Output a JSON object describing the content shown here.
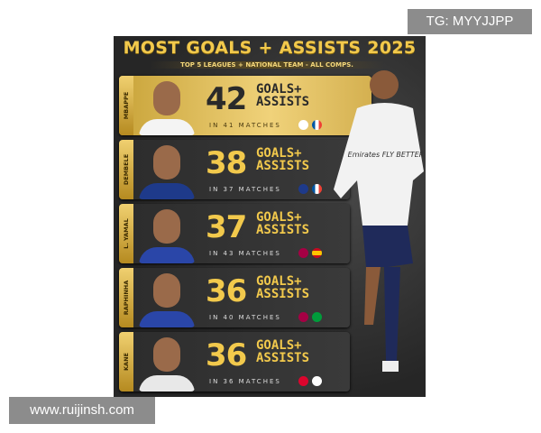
{
  "poster": {
    "title": "MOST GOALS + ASSISTS 2025",
    "subtitle": "TOP 5 LEAGUES + NATIONAL TEAM - ALL COMPS.",
    "ga_label": "GOALS+",
    "ga_label2": "ASSISTS",
    "players": [
      {
        "name": "MBAPPE",
        "total": "42",
        "matches": "IN 41 MATCHES",
        "club": "real-madrid-crest-icon",
        "nation": "france-flag-icon",
        "shirt": "#f4f4f4"
      },
      {
        "name": "DEMBELE",
        "total": "38",
        "matches": "IN 37 MATCHES",
        "club": "psg-crest-icon",
        "nation": "france-flag-icon",
        "shirt": "#1e3a8a"
      },
      {
        "name": "L. YAMAL",
        "total": "37",
        "matches": "IN 43 MATCHES",
        "club": "barcelona-crest-icon",
        "nation": "spain-flag-icon",
        "shirt": "#2a46a8"
      },
      {
        "name": "RAPHINHA",
        "total": "36",
        "matches": "IN 40 MATCHES",
        "club": "barcelona-crest-icon",
        "nation": "brazil-flag-icon",
        "shirt": "#2a46a8"
      },
      {
        "name": "KANE",
        "total": "36",
        "matches": "IN 36 MATCHES",
        "club": "bayern-crest-icon",
        "nation": "england-flag-icon",
        "shirt": "#e8e8e8"
      }
    ],
    "hero_sponsor": "Emirates FLY BETTER"
  },
  "watermarks": {
    "top": "TG: MYYJJPP",
    "bottom": "www.ruijinsh.com"
  }
}
